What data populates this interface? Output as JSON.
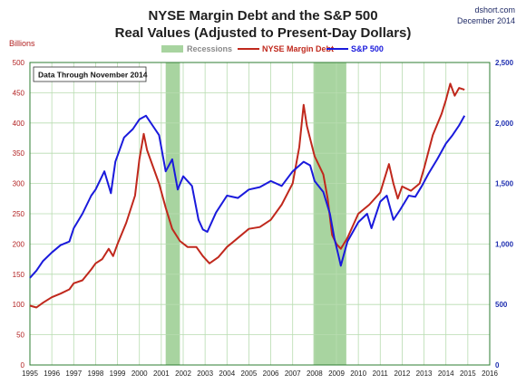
{
  "header": {
    "title_line1": "NYSE Margin Debt and the S&P 500",
    "title_line2": "Real Values (Adjusted to Present-Day Dollars)",
    "brand_line1": "dshort.com",
    "brand_line2": "December 2014"
  },
  "annotation": "Data Through November 2014",
  "colors": {
    "margin_debt": "#c0281c",
    "sp500": "#1a1adc",
    "recession": "#a8d4a0",
    "grid": "#b8dcb0",
    "plot_border": "#2e7d32",
    "left_axis_text": "#b22222",
    "right_axis_text": "#1f2fb0"
  },
  "chart_data": {
    "type": "line",
    "left_axis_label": "Billions",
    "y_left": {
      "min": 0,
      "max": 500,
      "ticks": [
        "0",
        "50",
        "100",
        "150",
        "200",
        "250",
        "300",
        "350",
        "400",
        "450",
        "500"
      ]
    },
    "y_right": {
      "min": 0,
      "max": 2500,
      "ticks": [
        "0",
        "500",
        "1,000",
        "1,500",
        "2,000",
        "2,500"
      ]
    },
    "x": {
      "min": 1995,
      "max": 2016,
      "ticks": [
        "1995",
        "1996",
        "1997",
        "1998",
        "1999",
        "2000",
        "2001",
        "2002",
        "2003",
        "2004",
        "2005",
        "2006",
        "2007",
        "2008",
        "2009",
        "2010",
        "2011",
        "2012",
        "2013",
        "2014",
        "2015",
        "2016"
      ]
    },
    "legend": [
      {
        "key": "recession",
        "label": "Recessions"
      },
      {
        "key": "margin_debt",
        "label": "NYSE Margin Debt"
      },
      {
        "key": "sp500",
        "label": "S&P 500"
      }
    ],
    "recessions": [
      {
        "start": 2001.2,
        "end": 2001.85
      },
      {
        "start": 2007.95,
        "end": 2009.45
      }
    ],
    "series": [
      {
        "name": "NYSE Margin Debt",
        "axis": "left",
        "points": [
          [
            1995.0,
            98
          ],
          [
            1995.3,
            95
          ],
          [
            1995.6,
            103
          ],
          [
            1996.0,
            112
          ],
          [
            1996.4,
            118
          ],
          [
            1996.8,
            125
          ],
          [
            1997.0,
            135
          ],
          [
            1997.4,
            140
          ],
          [
            1997.8,
            158
          ],
          [
            1998.0,
            168
          ],
          [
            1998.3,
            175
          ],
          [
            1998.6,
            192
          ],
          [
            1998.8,
            180
          ],
          [
            1999.0,
            200
          ],
          [
            1999.4,
            235
          ],
          [
            1999.8,
            280
          ],
          [
            2000.0,
            340
          ],
          [
            2000.2,
            382
          ],
          [
            2000.35,
            355
          ],
          [
            2000.6,
            330
          ],
          [
            2000.9,
            300
          ],
          [
            2001.2,
            260
          ],
          [
            2001.5,
            225
          ],
          [
            2001.85,
            205
          ],
          [
            2002.2,
            195
          ],
          [
            2002.6,
            195
          ],
          [
            2002.9,
            180
          ],
          [
            2003.2,
            168
          ],
          [
            2003.6,
            178
          ],
          [
            2004.0,
            195
          ],
          [
            2004.5,
            210
          ],
          [
            2005.0,
            225
          ],
          [
            2005.5,
            228
          ],
          [
            2006.0,
            240
          ],
          [
            2006.5,
            265
          ],
          [
            2007.0,
            300
          ],
          [
            2007.3,
            360
          ],
          [
            2007.5,
            430
          ],
          [
            2007.65,
            395
          ],
          [
            2008.0,
            345
          ],
          [
            2008.4,
            315
          ],
          [
            2008.6,
            275
          ],
          [
            2008.8,
            215
          ],
          [
            2009.0,
            200
          ],
          [
            2009.2,
            192
          ],
          [
            2009.5,
            210
          ],
          [
            2010.0,
            250
          ],
          [
            2010.5,
            265
          ],
          [
            2011.0,
            285
          ],
          [
            2011.4,
            332
          ],
          [
            2011.6,
            300
          ],
          [
            2011.8,
            275
          ],
          [
            2012.0,
            295
          ],
          [
            2012.4,
            288
          ],
          [
            2012.8,
            300
          ],
          [
            2013.0,
            325
          ],
          [
            2013.4,
            380
          ],
          [
            2013.8,
            415
          ],
          [
            2014.0,
            438
          ],
          [
            2014.2,
            465
          ],
          [
            2014.4,
            445
          ],
          [
            2014.6,
            458
          ],
          [
            2014.85,
            455
          ]
        ]
      },
      {
        "name": "S&P 500",
        "axis": "right",
        "points": [
          [
            1995.0,
            720
          ],
          [
            1995.3,
            780
          ],
          [
            1995.6,
            860
          ],
          [
            1996.0,
            930
          ],
          [
            1996.4,
            990
          ],
          [
            1996.8,
            1020
          ],
          [
            1997.0,
            1130
          ],
          [
            1997.4,
            1250
          ],
          [
            1997.8,
            1400
          ],
          [
            1998.0,
            1450
          ],
          [
            1998.4,
            1600
          ],
          [
            1998.7,
            1420
          ],
          [
            1998.9,
            1680
          ],
          [
            1999.3,
            1880
          ],
          [
            1999.7,
            1950
          ],
          [
            2000.0,
            2030
          ],
          [
            2000.3,
            2060
          ],
          [
            2000.6,
            1980
          ],
          [
            2000.9,
            1900
          ],
          [
            2001.2,
            1600
          ],
          [
            2001.5,
            1700
          ],
          [
            2001.75,
            1450
          ],
          [
            2002.0,
            1560
          ],
          [
            2002.4,
            1480
          ],
          [
            2002.7,
            1200
          ],
          [
            2002.9,
            1120
          ],
          [
            2003.1,
            1100
          ],
          [
            2003.5,
            1260
          ],
          [
            2004.0,
            1400
          ],
          [
            2004.5,
            1380
          ],
          [
            2005.0,
            1450
          ],
          [
            2005.5,
            1470
          ],
          [
            2006.0,
            1520
          ],
          [
            2006.5,
            1480
          ],
          [
            2007.0,
            1600
          ],
          [
            2007.5,
            1680
          ],
          [
            2007.8,
            1650
          ],
          [
            2008.0,
            1520
          ],
          [
            2008.4,
            1430
          ],
          [
            2008.7,
            1250
          ],
          [
            2008.9,
            1050
          ],
          [
            2009.1,
            900
          ],
          [
            2009.2,
            820
          ],
          [
            2009.5,
            1020
          ],
          [
            2010.0,
            1180
          ],
          [
            2010.4,
            1250
          ],
          [
            2010.6,
            1130
          ],
          [
            2011.0,
            1350
          ],
          [
            2011.3,
            1400
          ],
          [
            2011.6,
            1200
          ],
          [
            2011.9,
            1280
          ],
          [
            2012.3,
            1400
          ],
          [
            2012.6,
            1390
          ],
          [
            2012.9,
            1480
          ],
          [
            2013.2,
            1580
          ],
          [
            2013.6,
            1700
          ],
          [
            2014.0,
            1830
          ],
          [
            2014.3,
            1900
          ],
          [
            2014.6,
            1980
          ],
          [
            2014.85,
            2060
          ]
        ]
      }
    ]
  }
}
